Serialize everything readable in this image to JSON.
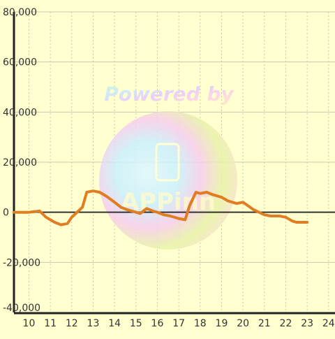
{
  "watermark": {
    "text": "Powered by",
    "logo_text": "APPinn",
    "icon": "mobile-phone-icon"
  },
  "colors": {
    "background": "#ffffd0",
    "line": "#e07d22",
    "zero_line": "#333333",
    "axis": "#222222",
    "grid": "#c8c8b0",
    "tick_text": "#333333"
  },
  "chart_data": {
    "type": "line",
    "title": "",
    "xlabel": "",
    "ylabel": "",
    "xlim": [
      9.3,
      24.3
    ],
    "ylim": [
      -40000,
      80000
    ],
    "grid": true,
    "x_ticks": [
      10,
      11,
      12,
      13,
      14,
      15,
      16,
      17,
      18,
      19,
      20,
      21,
      22,
      23,
      24
    ],
    "y_ticks": [
      -40000,
      -20000,
      0,
      20000,
      40000,
      60000,
      80000
    ],
    "x_tick_labels": [
      "10",
      "11",
      "12",
      "13",
      "14",
      "15",
      "16",
      "17",
      "18",
      "19",
      "20",
      "21",
      "22",
      "23",
      "24"
    ],
    "y_tick_labels": [
      "-40,000",
      "-20,000",
      "0",
      "20,000",
      "40,000",
      "60,000",
      "80,000"
    ],
    "series": [
      {
        "x": [
          9.3,
          9.5,
          10.0,
          10.5,
          10.8,
          11.2,
          11.5,
          11.8,
          12.0,
          12.5,
          12.7,
          13.0,
          13.3,
          13.6,
          14.0,
          14.3,
          14.6,
          15.0,
          15.2,
          15.5,
          15.8,
          16.0,
          16.3,
          16.6,
          17.0,
          17.3,
          17.5,
          17.8,
          18.0,
          18.3,
          18.6,
          19.0,
          19.3,
          19.7,
          20.0,
          20.5,
          21.0,
          21.3,
          21.7,
          22.0,
          22.3,
          22.5,
          23.0
        ],
        "y": [
          0,
          0,
          0,
          500,
          -2000,
          -4000,
          -5000,
          -4500,
          -2000,
          2000,
          8000,
          8500,
          8000,
          6500,
          4000,
          2000,
          1000,
          0,
          -500,
          1500,
          500,
          0,
          -1000,
          -1500,
          -2500,
          -3000,
          2500,
          8000,
          7500,
          8000,
          7000,
          6000,
          4500,
          3500,
          4000,
          1000,
          -1000,
          -1500,
          -1500,
          -2000,
          -3500,
          -4000,
          -4000
        ]
      }
    ]
  }
}
